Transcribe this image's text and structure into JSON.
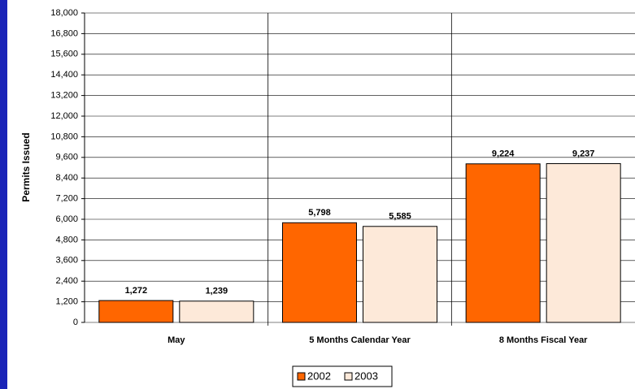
{
  "chart_data": {
    "type": "bar",
    "y_label": "Permits Issued",
    "categories": [
      "May",
      "5 Months Calendar Year",
      "8 Months Fiscal Year"
    ],
    "series": [
      {
        "name": "2002",
        "color": "#ff6600",
        "values": [
          1272,
          5798,
          9224
        ],
        "value_labels": [
          "1,272",
          "5,798",
          "9,224"
        ]
      },
      {
        "name": "2003",
        "color": "#fde9d9",
        "values": [
          1239,
          5585,
          9237
        ],
        "value_labels": [
          "1,239",
          "5,585",
          "9,237"
        ]
      }
    ],
    "ylim": [
      0,
      18000
    ],
    "yticks": [
      0,
      {
        "value": 1200,
        "label": "1,200"
      },
      {
        "value": 2400,
        "label": "2,400"
      },
      {
        "value": 3600,
        "label": "3,600"
      },
      {
        "value": 4800,
        "label": "4,800"
      },
      {
        "value": 6000,
        "label": "6,000"
      },
      {
        "value": 7200,
        "label": "7,200"
      },
      {
        "value": 8400,
        "label": "8,400"
      },
      {
        "value": 9600,
        "label": "9,600"
      },
      {
        "value": 10800,
        "label": "10,800"
      },
      {
        "value": 12000,
        "label": "12,000"
      },
      {
        "value": 13200,
        "label": "13,200"
      },
      {
        "value": 14400,
        "label": "14,400"
      },
      {
        "value": 15600,
        "label": "15,600"
      },
      {
        "value": 16800,
        "label": "16,800"
      },
      {
        "value": 18000,
        "label": "18,000"
      }
    ],
    "grid": true,
    "legend": "bottom"
  }
}
